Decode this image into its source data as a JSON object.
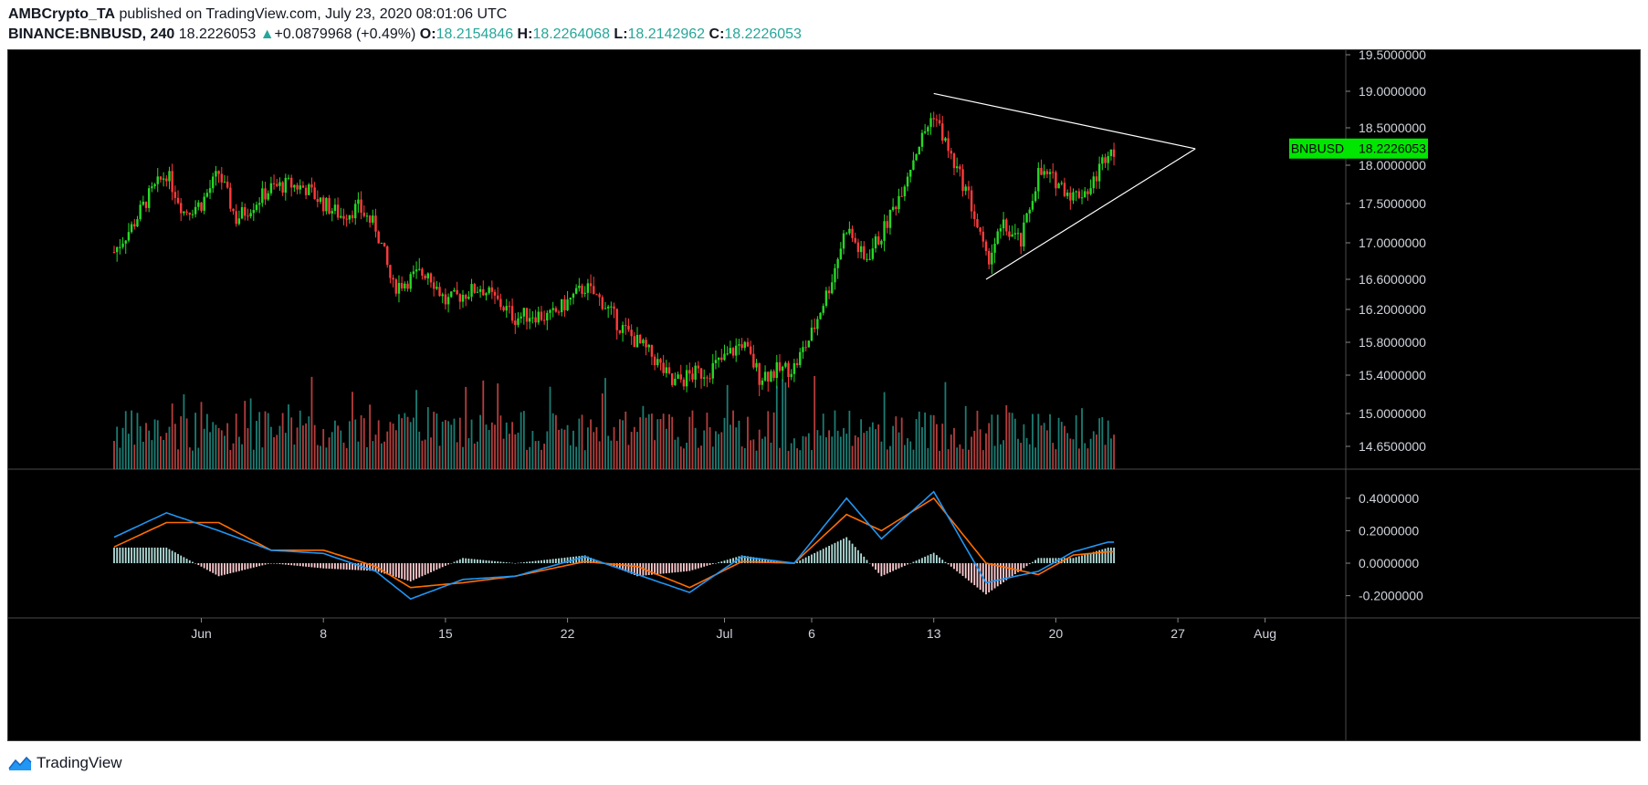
{
  "header": {
    "publisher": "AMBCrypto_TA",
    "published_text": "published on TradingView.com, July 23, 2020 08:01:06 UTC",
    "symbol": "BINANCE:BNBUSD, 240",
    "last_price": "18.2226053",
    "change_arrow": "▲",
    "change": "+0.0879968 (+0.49%)",
    "open_label": "O:",
    "open": "18.2154846",
    "high_label": "H:",
    "high": "18.2264068",
    "low_label": "L:",
    "low": "18.2142962",
    "close_label": "C:",
    "close": "18.2226053"
  },
  "footer": {
    "brand": "TradingView",
    "logo_icon": "tradingview-logo-icon"
  },
  "colors": {
    "up": "#26d926",
    "down": "#ff3b3b",
    "volume_up": "#26a69a",
    "volume_down": "#ef5350",
    "macd_line": "#2196f3",
    "signal_line": "#ff6d00",
    "hist_pos": "#b2dfdb",
    "hist_neg": "#ffcdd2",
    "price_label_bg": "#00e600",
    "trendline": "#ffffff"
  },
  "chart_data": {
    "type": "candlestick",
    "symbol": "BNBUSD",
    "price_label": "18.2226053",
    "x_ticks": [
      "Jun",
      "8",
      "15",
      "22",
      "Jul",
      "6",
      "13",
      "20",
      "27",
      "Aug"
    ],
    "price_axis_ticks": [
      "19.5000000",
      "19.0000000",
      "18.5000000",
      "18.0000000",
      "17.5000000",
      "17.0000000",
      "16.6000000",
      "16.2000000",
      "15.8000000",
      "15.4000000",
      "15.0000000",
      "14.6500000"
    ],
    "macd_axis_ticks": [
      "0.4000000",
      "0.2000000",
      "0.0000000",
      "-0.2000000"
    ],
    "price_range": [
      14.5,
      19.6
    ],
    "macd_range": [
      -0.3,
      0.5
    ],
    "grid": false,
    "price_path_daily": [
      {
        "date": "2020-05-27",
        "close": 16.9
      },
      {
        "date": "2020-05-28",
        "close": 17.2
      },
      {
        "date": "2020-05-29",
        "close": 17.6
      },
      {
        "date": "2020-05-30",
        "close": 17.9
      },
      {
        "date": "2020-05-31",
        "close": 17.4
      },
      {
        "date": "2020-06-01",
        "close": 17.5
      },
      {
        "date": "2020-06-02",
        "close": 17.9
      },
      {
        "date": "2020-06-03",
        "close": 17.3
      },
      {
        "date": "2020-06-04",
        "close": 17.5
      },
      {
        "date": "2020-06-05",
        "close": 17.7
      },
      {
        "date": "2020-06-06",
        "close": 17.75
      },
      {
        "date": "2020-06-07",
        "close": 17.7
      },
      {
        "date": "2020-06-08",
        "close": 17.5
      },
      {
        "date": "2020-06-09",
        "close": 17.35
      },
      {
        "date": "2020-06-10",
        "close": 17.45
      },
      {
        "date": "2020-06-11",
        "close": 17.2
      },
      {
        "date": "2020-06-12",
        "close": 16.5
      },
      {
        "date": "2020-06-13",
        "close": 16.6
      },
      {
        "date": "2020-06-14",
        "close": 16.7
      },
      {
        "date": "2020-06-15",
        "close": 16.3
      },
      {
        "date": "2020-06-16",
        "close": 16.4
      },
      {
        "date": "2020-06-17",
        "close": 16.5
      },
      {
        "date": "2020-06-18",
        "close": 16.3
      },
      {
        "date": "2020-06-19",
        "close": 16.1
      },
      {
        "date": "2020-06-20",
        "close": 16.15
      },
      {
        "date": "2020-06-21",
        "close": 16.1
      },
      {
        "date": "2020-06-22",
        "close": 16.3
      },
      {
        "date": "2020-06-23",
        "close": 16.5
      },
      {
        "date": "2020-06-24",
        "close": 16.3
      },
      {
        "date": "2020-06-25",
        "close": 16.0
      },
      {
        "date": "2020-06-26",
        "close": 15.8
      },
      {
        "date": "2020-06-27",
        "close": 15.6
      },
      {
        "date": "2020-06-28",
        "close": 15.3
      },
      {
        "date": "2020-06-29",
        "close": 15.4
      },
      {
        "date": "2020-06-30",
        "close": 15.45
      },
      {
        "date": "2020-07-01",
        "close": 15.6
      },
      {
        "date": "2020-07-02",
        "close": 15.8
      },
      {
        "date": "2020-07-03",
        "close": 15.4
      },
      {
        "date": "2020-07-04",
        "close": 15.45
      },
      {
        "date": "2020-07-05",
        "close": 15.5
      },
      {
        "date": "2020-07-06",
        "close": 15.9
      },
      {
        "date": "2020-07-07",
        "close": 16.5
      },
      {
        "date": "2020-07-08",
        "close": 17.2
      },
      {
        "date": "2020-07-09",
        "close": 16.8
      },
      {
        "date": "2020-07-10",
        "close": 17.1
      },
      {
        "date": "2020-07-11",
        "close": 17.6
      },
      {
        "date": "2020-07-12",
        "close": 18.2
      },
      {
        "date": "2020-07-13",
        "close": 18.7
      },
      {
        "date": "2020-07-14",
        "close": 18.1
      },
      {
        "date": "2020-07-15",
        "close": 17.6
      },
      {
        "date": "2020-07-16",
        "close": 16.8
      },
      {
        "date": "2020-07-17",
        "close": 17.2
      },
      {
        "date": "2020-07-18",
        "close": 17.0
      },
      {
        "date": "2020-07-19",
        "close": 17.9
      },
      {
        "date": "2020-07-20",
        "close": 17.8
      },
      {
        "date": "2020-07-21",
        "close": 17.6
      },
      {
        "date": "2020-07-22",
        "close": 17.7
      },
      {
        "date": "2020-07-23",
        "close": 18.22
      }
    ],
    "macd_path_daily": [
      {
        "date": "2020-05-27",
        "macd": 0.16,
        "signal": 0.1
      },
      {
        "date": "2020-05-30",
        "macd": 0.31,
        "signal": 0.25
      },
      {
        "date": "2020-06-02",
        "macd": 0.2,
        "signal": 0.25
      },
      {
        "date": "2020-06-05",
        "macd": 0.08,
        "signal": 0.08
      },
      {
        "date": "2020-06-08",
        "macd": 0.06,
        "signal": 0.08
      },
      {
        "date": "2020-06-11",
        "macd": -0.05,
        "signal": -0.02
      },
      {
        "date": "2020-06-13",
        "macd": -0.22,
        "signal": -0.15
      },
      {
        "date": "2020-06-16",
        "macd": -0.1,
        "signal": -0.12
      },
      {
        "date": "2020-06-19",
        "macd": -0.08,
        "signal": -0.08
      },
      {
        "date": "2020-06-23",
        "macd": 0.04,
        "signal": 0.01
      },
      {
        "date": "2020-06-26",
        "macd": -0.07,
        "signal": -0.02
      },
      {
        "date": "2020-06-29",
        "macd": -0.18,
        "signal": -0.15
      },
      {
        "date": "2020-07-02",
        "macd": 0.04,
        "signal": 0.01
      },
      {
        "date": "2020-07-05",
        "macd": 0.0,
        "signal": 0.0
      },
      {
        "date": "2020-07-08",
        "macd": 0.4,
        "signal": 0.3
      },
      {
        "date": "2020-07-10",
        "macd": 0.15,
        "signal": 0.2
      },
      {
        "date": "2020-07-13",
        "macd": 0.44,
        "signal": 0.4
      },
      {
        "date": "2020-07-16",
        "macd": -0.12,
        "signal": 0.0
      },
      {
        "date": "2020-07-19",
        "macd": -0.05,
        "signal": -0.07
      },
      {
        "date": "2020-07-21",
        "macd": 0.07,
        "signal": 0.05
      },
      {
        "date": "2020-07-23",
        "macd": 0.13,
        "signal": 0.07
      }
    ],
    "trendlines": [
      {
        "name": "upper",
        "from": {
          "date": "2020-07-13",
          "price": 18.97
        },
        "to": {
          "date": "2020-07-28",
          "price": 18.22
        }
      },
      {
        "name": "lower",
        "from": {
          "date": "2020-07-16",
          "price": 16.6
        },
        "to": {
          "date": "2020-07-28",
          "price": 18.22
        }
      }
    ]
  }
}
